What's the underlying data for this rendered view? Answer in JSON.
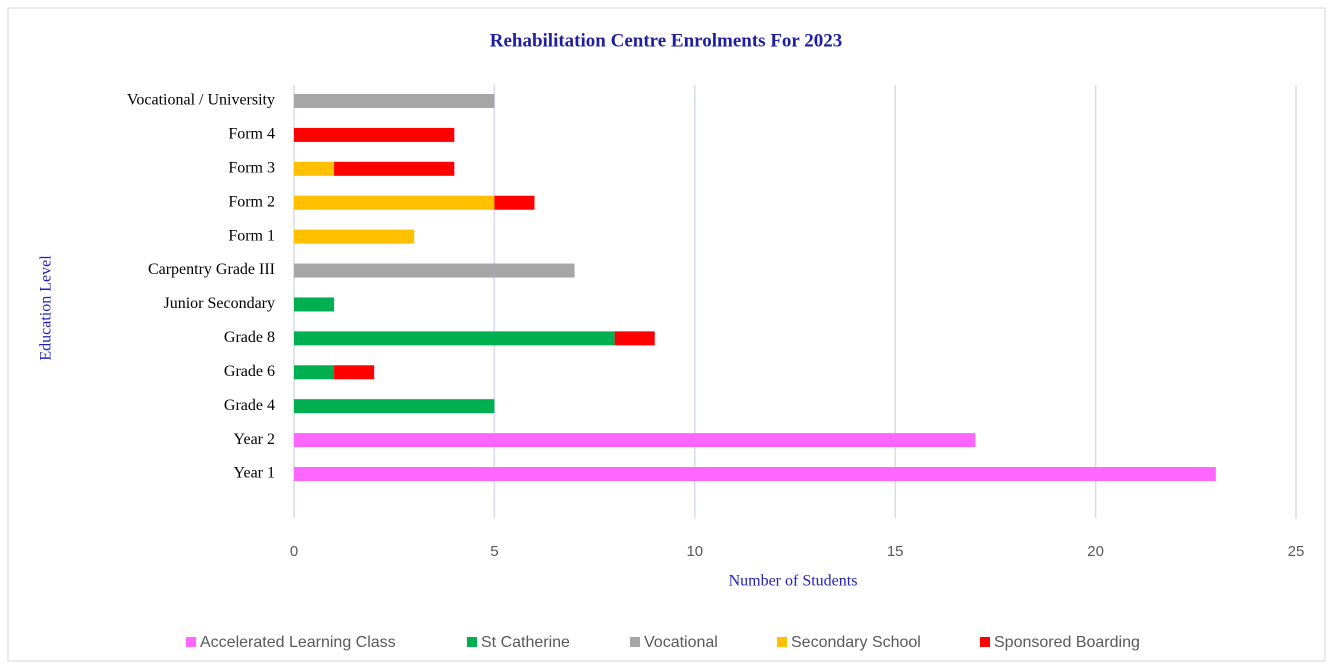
{
  "chart_data": {
    "type": "bar",
    "orientation": "horizontal",
    "stacked": true,
    "title": "Rehabilitation Centre Enrolments For 2023",
    "x_label": "Number of Students",
    "y_label": "Education Level",
    "categories": [
      "Year 1",
      "Year 2",
      "Grade 4",
      "Grade 6",
      "Grade 8",
      "Junior Secondary",
      "Carpentry Grade III",
      "Form 1",
      "Form 2",
      "Form 3",
      "Form 4",
      "Vocational / University"
    ],
    "series": [
      {
        "name": "Accelerated Learning Class",
        "color": "#ff66ff",
        "values": [
          23,
          17,
          null,
          null,
          null,
          null,
          null,
          null,
          null,
          null,
          null,
          null
        ]
      },
      {
        "name": "St Catherine",
        "color": "#00b050",
        "values": [
          null,
          null,
          5,
          1,
          8,
          1,
          null,
          null,
          null,
          null,
          null,
          null
        ]
      },
      {
        "name": "Vocational",
        "color": "#a6a6a6",
        "values": [
          null,
          null,
          null,
          null,
          null,
          null,
          7,
          null,
          null,
          null,
          null,
          5
        ]
      },
      {
        "name": "Secondary School",
        "color": "#ffc000",
        "values": [
          null,
          null,
          null,
          null,
          null,
          null,
          null,
          3,
          5,
          1,
          null,
          null
        ]
      },
      {
        "name": "Sponsored Boarding",
        "color": "#ff0000",
        "values": [
          null,
          null,
          null,
          1,
          1,
          null,
          null,
          null,
          1,
          3,
          4,
          null
        ]
      }
    ],
    "xlim": [
      0,
      25
    ],
    "xticks": [
      0,
      5,
      10,
      15,
      20,
      25
    ],
    "grid": true,
    "legend": "bottom"
  }
}
